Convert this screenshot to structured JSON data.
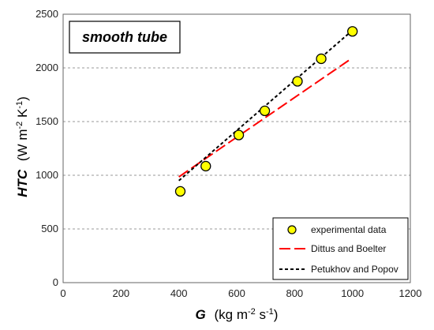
{
  "chart_data": {
    "type": "scatter",
    "inset_label": "smooth tube",
    "xlabel_main": "G",
    "xlabel_unit": "(kg m",
    "xlabel_unit_mid": " s",
    "xlabel_exp1": "-2",
    "xlabel_exp2": "-1",
    "xlabel_close": ")",
    "ylabel_main": "HTC",
    "ylabel_unit": "(W m",
    "ylabel_unit_mid": " K",
    "ylabel_exp1": "-2",
    "ylabel_exp2": "-1",
    "ylabel_close": ")",
    "xlim": [
      0,
      1200
    ],
    "ylim": [
      0,
      2500
    ],
    "xticks": [
      "0",
      "200",
      "400",
      "600",
      "800",
      "1000",
      "1200"
    ],
    "yticks": [
      "0",
      "500",
      "1000",
      "1500",
      "2000",
      "2500"
    ],
    "grid": "horizontal dashed",
    "legend_position": "bottom-right",
    "series": [
      {
        "name": "experimental data",
        "kind": "markers",
        "color": "#FFFF00",
        "edge_color": "#000000",
        "x": [
          405,
          493,
          607,
          697,
          810,
          892,
          1000
        ],
        "y": [
          850,
          1085,
          1375,
          1600,
          1875,
          2085,
          2340
        ]
      },
      {
        "name": "Dittus and Boelter",
        "kind": "long-dash line",
        "color": "#FF0000",
        "x": [
          400,
          990
        ],
        "y": [
          985,
          2075
        ]
      },
      {
        "name": "Petukhov and Popov",
        "kind": "short-dash line",
        "color": "#000000",
        "x": [
          400,
          1000
        ],
        "y": [
          950,
          2350
        ]
      }
    ]
  }
}
